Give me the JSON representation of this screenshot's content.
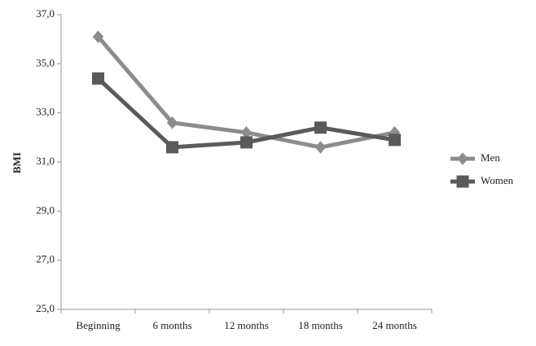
{
  "chart_data": {
    "type": "line",
    "y_label": "BMI",
    "categories": [
      "Beginning",
      "6 months",
      "12 months",
      "18 months",
      "24 months"
    ],
    "series": [
      {
        "name": "Men",
        "color": "#8c8c8c",
        "marker": "diamond",
        "values": [
          36.1,
          32.6,
          32.2,
          31.6,
          32.2
        ]
      },
      {
        "name": "Women",
        "color": "#5a5a5a",
        "marker": "square",
        "values": [
          34.4,
          31.6,
          31.8,
          32.4,
          31.9
        ]
      }
    ],
    "ylim": [
      25,
      37
    ],
    "yticks": [
      {
        "value": 25,
        "label": "25,0"
      },
      {
        "value": 27,
        "label": "27,0"
      },
      {
        "value": 29,
        "label": "29,0"
      },
      {
        "value": 31,
        "label": "31,0"
      },
      {
        "value": 33,
        "label": "33,0"
      },
      {
        "value": 35,
        "label": "35,0"
      },
      {
        "value": 37,
        "label": "37,0"
      }
    ],
    "legend": "right"
  }
}
